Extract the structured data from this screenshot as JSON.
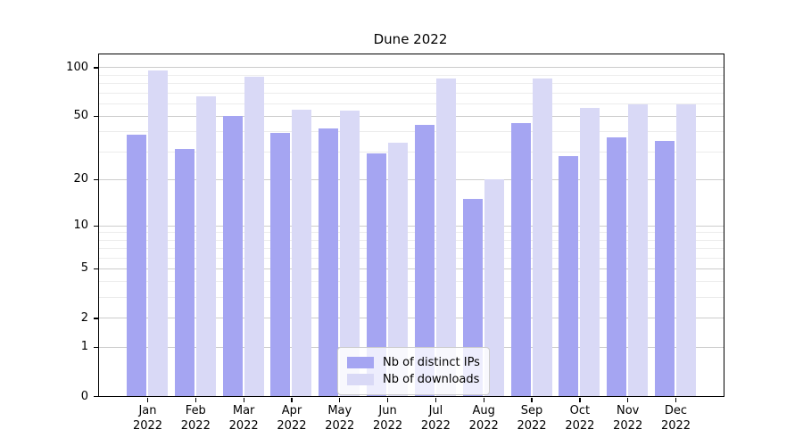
{
  "title": "Dune 2022",
  "chart_data": {
    "type": "bar",
    "title": "Dune 2022",
    "categories": [
      "Jan 2022",
      "Feb 2022",
      "Mar 2022",
      "Apr 2022",
      "May 2022",
      "Jun 2022",
      "Jul 2022",
      "Aug 2022",
      "Sep 2022",
      "Oct 2022",
      "Nov 2022",
      "Dec 2022"
    ],
    "series": [
      {
        "name": "Nb of distinct IPs",
        "color": "#a5a5f2",
        "values": [
          38,
          31,
          50,
          39,
          42,
          29,
          44,
          15,
          45,
          28,
          37,
          35
        ]
      },
      {
        "name": "Nb of downloads",
        "color": "#d9d9f6",
        "values": [
          95,
          66,
          87,
          55,
          54,
          34,
          85,
          20,
          85,
          56,
          59,
          59
        ]
      }
    ],
    "xlabel": "",
    "ylabel": "",
    "yscale": "log1p",
    "ylim": [
      0,
      120
    ],
    "yticks": [
      0,
      1,
      2,
      5,
      10,
      20,
      50,
      100
    ],
    "yticks_minor": [
      3,
      4,
      6,
      7,
      8,
      9,
      30,
      40,
      60,
      70,
      80,
      90
    ],
    "grid": true,
    "legend_position": "lower center"
  },
  "colors": {
    "major_grid": "#cccccc",
    "minor_grid": "#ececec",
    "spine": "#000000",
    "background": "#ffffff"
  }
}
